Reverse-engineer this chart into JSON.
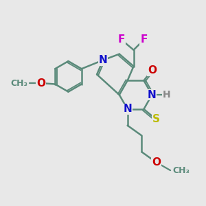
{
  "bg_color": "#e8e8e8",
  "bond_color": "#5a8a7a",
  "bond_width": 1.8,
  "dbo": 0.08,
  "atom_colors": {
    "N": "#1010cc",
    "O": "#cc0000",
    "F": "#cc00cc",
    "S": "#bbbb00",
    "H": "#888888",
    "C": "#5a8a7a"
  },
  "font_size": 11,
  "figsize": [
    3.0,
    3.0
  ],
  "dpi": 100
}
